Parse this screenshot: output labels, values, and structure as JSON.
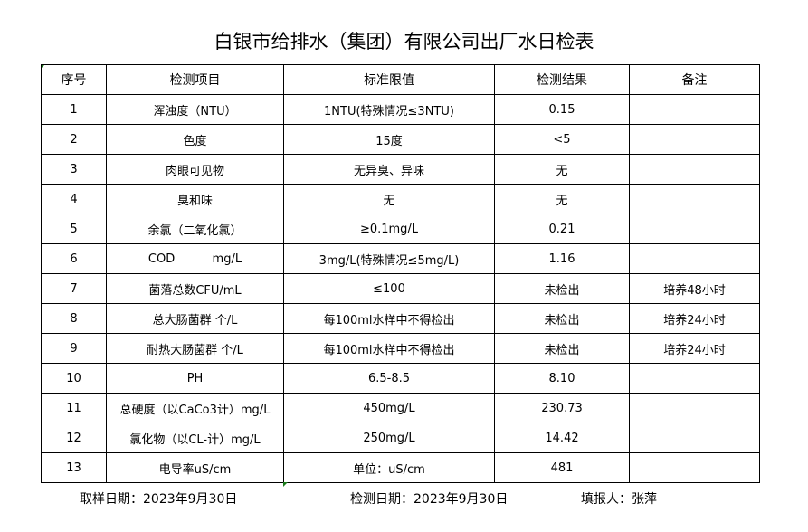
{
  "title": "白银市给排水（集团）有限公司出厂水日检表",
  "headers": [
    "序号",
    "检测项目",
    "标准限值",
    "检测结果",
    "备注"
  ],
  "rows": [
    [
      "1",
      "浑浊度（NTU）",
      "1NTU(特殊情况≤3NTU)",
      "0.15",
      ""
    ],
    [
      "2",
      "色度",
      "15度",
      "<5",
      ""
    ],
    [
      "3",
      "肉眼可见物",
      "无异臭、异味",
      "无",
      ""
    ],
    [
      "4",
      "臭和味",
      "无",
      "无",
      ""
    ],
    [
      "5",
      "余氯（二氧化氯）",
      "≥0.1mg/L",
      "0.21",
      ""
    ],
    [
      "6",
      "COD          mg/L",
      "3mg/L(特殊情况≤5mg/L)",
      "1.16",
      ""
    ],
    [
      "7",
      "菌落总数CFU/mL",
      "≤100",
      "未检出",
      "培养48小时"
    ],
    [
      "8",
      "总大肠菌群 个/L",
      "每100ml水样中不得检出",
      "未检出",
      "培养24小时"
    ],
    [
      "9",
      "耐热大肠菌群 个/L",
      "每100ml水样中不得检出",
      "未检出",
      "培养24小时"
    ],
    [
      "10",
      "PH",
      "6.5-8.5",
      "8.10",
      ""
    ],
    [
      "11",
      "总硬度（以CaCo3计）mg/L",
      "450mg/L",
      "230.73",
      ""
    ],
    [
      "12",
      "氯化物（以CL-计）mg/L",
      "250mg/L",
      "14.42",
      ""
    ],
    [
      "13",
      "电导率uS/cm",
      "单位：uS/cm",
      "481",
      ""
    ]
  ],
  "footer": {
    "sample_date": "取样日期：2023年9月30日",
    "test_date": "检测日期：2023年9月30日",
    "filler": "填报人：张萍"
  }
}
